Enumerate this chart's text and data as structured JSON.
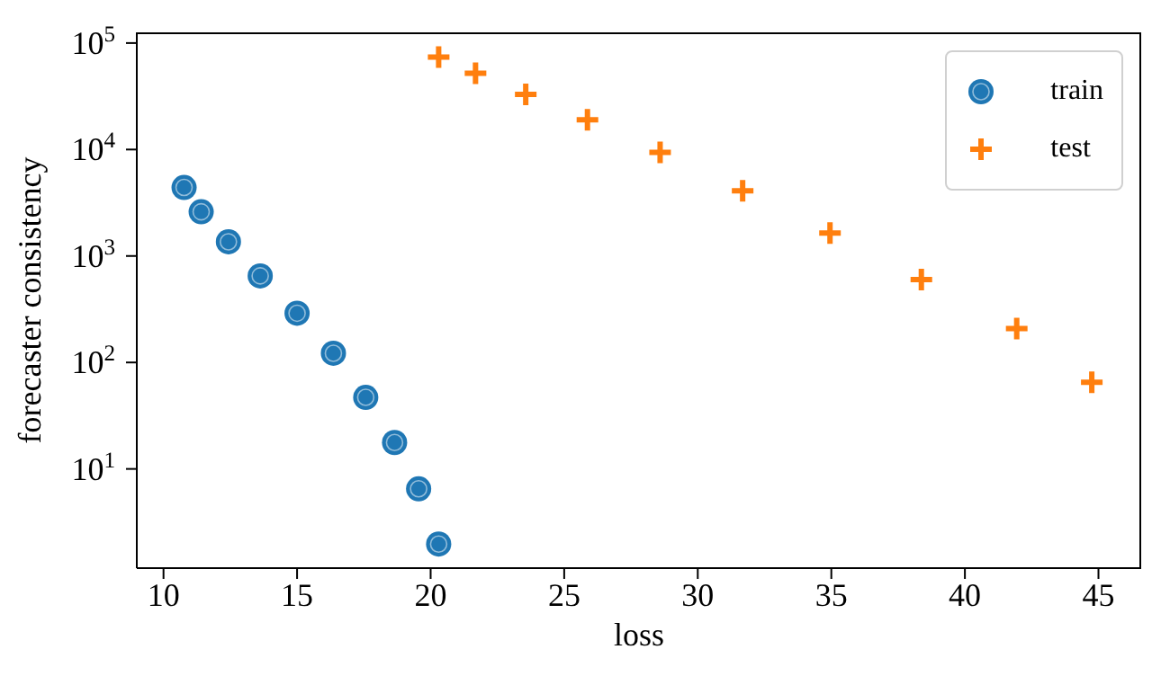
{
  "chart_data": {
    "type": "scatter",
    "xlabel": "loss",
    "ylabel": "forecaster consistency",
    "log": "y",
    "xlim": [
      9.0,
      46.6
    ],
    "xticks": [
      10,
      15,
      20,
      25,
      30,
      35,
      40,
      45
    ],
    "ylim": [
      1.17,
      126000
    ],
    "yticks": [
      {
        "value": 10,
        "label": "10$^{1}$"
      },
      {
        "value": 100,
        "label": "10$^{2}$"
      },
      {
        "value": 1000,
        "label": "10$^{3}$"
      },
      {
        "value": 10000,
        "label": "10$^{4}$"
      },
      {
        "value": 100000,
        "label": "10$^{5}$"
      }
    ],
    "grid": false,
    "legend": "top right",
    "series": [
      {
        "name": "train",
        "color": "#1f77b4",
        "marker": "circle",
        "x": [
          10.77,
          11.41,
          12.43,
          13.62,
          15.0,
          16.36,
          17.57,
          18.65,
          19.55,
          20.3
        ],
        "values": [
          4400,
          2600,
          1360,
          650,
          290,
          122,
          47,
          17.7,
          6.5,
          1.97
        ]
      },
      {
        "name": "test",
        "color": "#ff7f0e",
        "marker": "cross",
        "x": [
          20.3,
          21.68,
          23.56,
          25.87,
          28.59,
          31.68,
          34.95,
          38.37,
          41.94,
          44.75
        ],
        "values": [
          74000,
          52000,
          33000,
          19000,
          9400,
          4100,
          1640,
          600,
          208,
          65
        ]
      }
    ]
  }
}
